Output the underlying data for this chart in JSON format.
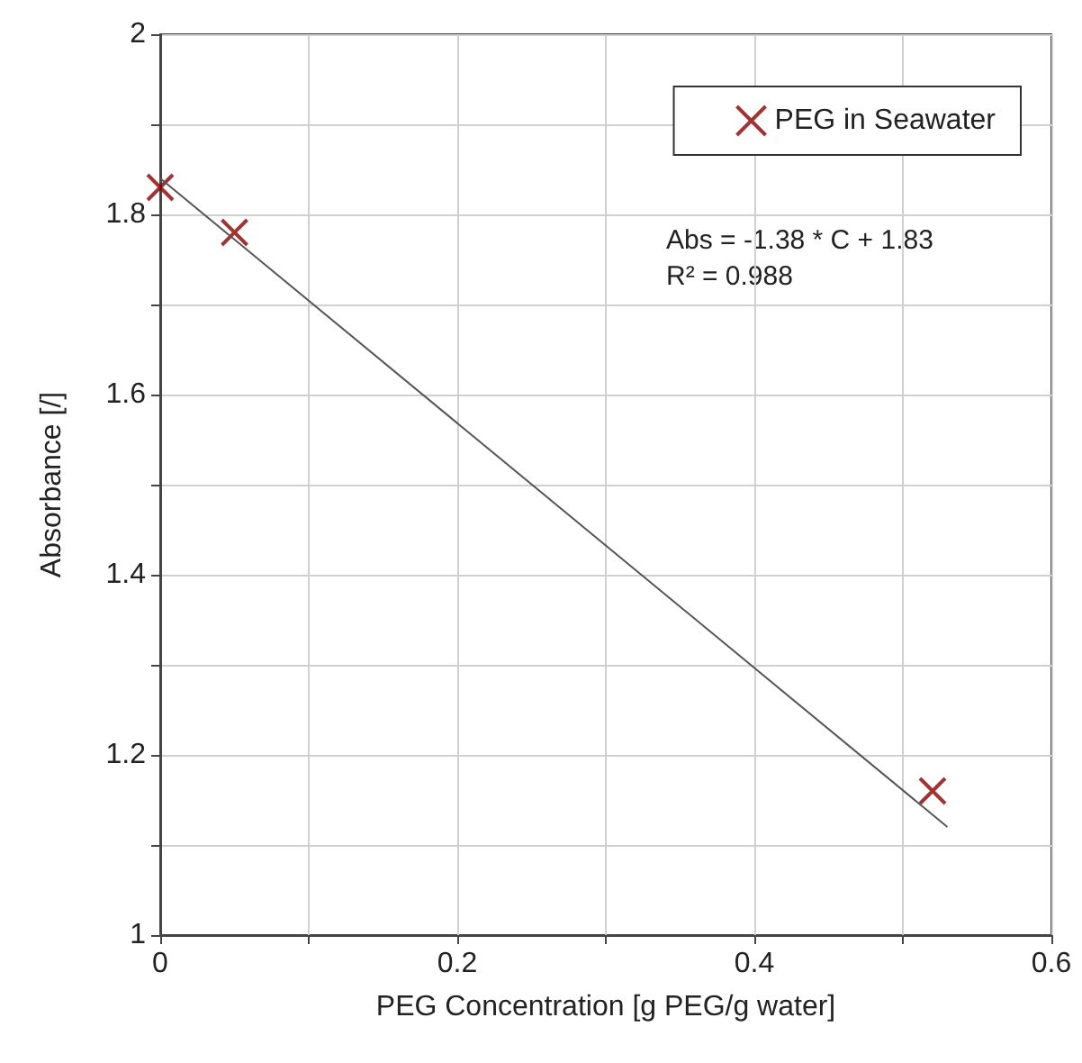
{
  "chart_data": {
    "type": "scatter",
    "xlabel": "PEG Concentration [g PEG/g water]",
    "ylabel": "Absorbance [/]",
    "annotations": [
      "Abs = -1.38 * C + 1.83",
      "R² = 0.988"
    ],
    "series": [
      {
        "name": "PEG in Seawater",
        "color": "#8b0000",
        "marker": "cross",
        "x": [
          0,
          0.05,
          0.52
        ],
        "values": [
          1.83,
          1.78,
          1.16
        ]
      },
      {
        "type": "line",
        "color": "#555555",
        "marker": "none",
        "x": [
          0,
          0.53
        ],
        "values": [
          1.84,
          1.12
        ]
      }
    ],
    "xlim": [
      0,
      0.6
    ],
    "xticks": [
      0,
      {
        "value": 0.1,
        "label": null
      },
      0.2,
      {
        "value": 0.3,
        "label": null
      },
      0.4,
      {
        "value": 0.5,
        "label": null
      },
      0.6
    ],
    "ylim": [
      1,
      2
    ],
    "yticks": [
      1,
      {
        "value": 1.1,
        "label": null
      },
      1.2,
      {
        "value": 1.3,
        "label": null
      },
      1.4,
      {
        "value": 1.5,
        "label": null
      },
      1.6,
      {
        "value": 1.7,
        "label": null
      },
      1.8,
      {
        "value": 1.9,
        "label": null
      },
      2
    ],
    "grid": true,
    "legend": "top right",
    "line_style": "solid"
  }
}
